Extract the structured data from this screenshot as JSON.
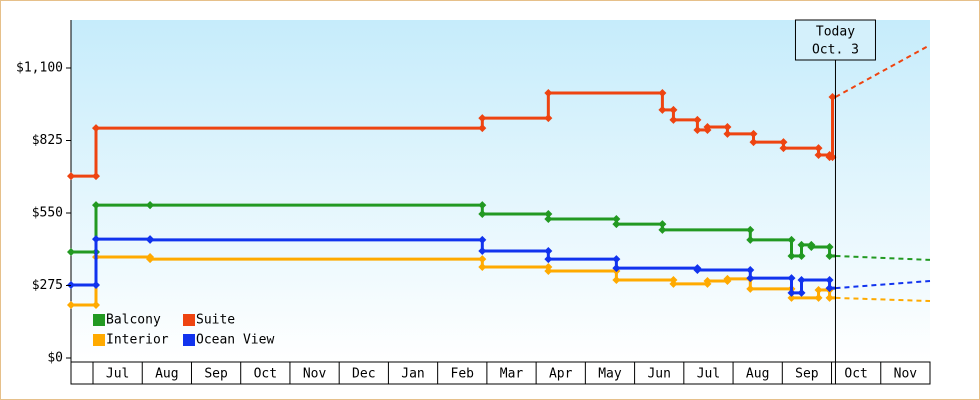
{
  "chart_data": {
    "type": "step-line",
    "xlim": [
      -0.447,
      17
    ],
    "xticks": [
      {
        "value": 0.5,
        "label": "Jul"
      },
      {
        "value": 1.5,
        "label": "Aug"
      },
      {
        "value": 2.5,
        "label": "Sep"
      },
      {
        "value": 3.5,
        "label": "Oct"
      },
      {
        "value": 4.5,
        "label": "Nov"
      },
      {
        "value": 5.5,
        "label": "Dec"
      },
      {
        "value": 6.5,
        "label": "Jan"
      },
      {
        "value": 7.5,
        "label": "Feb"
      },
      {
        "value": 8.5,
        "label": "Mar"
      },
      {
        "value": 9.5,
        "label": "Apr"
      },
      {
        "value": 10.5,
        "label": "May"
      },
      {
        "value": 11.5,
        "label": "Jun"
      },
      {
        "value": 12.5,
        "label": "Jul"
      },
      {
        "value": 13.5,
        "label": "Aug"
      },
      {
        "value": 14.5,
        "label": "Sep"
      },
      {
        "value": 15.5,
        "label": "Oct"
      },
      {
        "value": 16.5,
        "label": "Nov"
      }
    ],
    "ylim": [
      0,
      1282
    ],
    "yticks": [
      {
        "value": 0,
        "label": "$0"
      },
      {
        "value": 275,
        "label": "$275"
      },
      {
        "value": 550,
        "label": "$550"
      },
      {
        "value": 825,
        "label": "$825"
      },
      {
        "value": 1100,
        "label": "$1,100"
      }
    ],
    "legend": "lower left",
    "annotation": {
      "x": 15.08,
      "label": [
        "Today",
        "Oct. 3"
      ]
    },
    "series": [
      {
        "name": "Balcony",
        "color": "#229922",
        "x": [
          -0.447,
          0.061,
          1.159,
          7.907,
          9.248,
          10.63,
          11.565,
          13.35,
          14.187,
          14.39,
          14.59,
          14.96
        ],
        "values": [
          402,
          580,
          580,
          546,
          527,
          508,
          486,
          448,
          387,
          429,
          421,
          387
        ],
        "forecast": {
          "x": [
            15.08,
            17
          ],
          "values": [
            387,
            372
          ]
        }
      },
      {
        "name": "Suite",
        "color": "#ee4411",
        "x": [
          -0.447,
          0.061,
          7.907,
          9.248,
          11.565,
          11.789,
          12.276,
          12.48,
          12.886,
          13.415,
          14.024,
          14.736,
          14.96,
          15.02
        ],
        "values": [
          690,
          872,
          910,
          1005,
          941,
          903,
          865,
          876,
          850,
          819,
          796,
          770,
          762,
          990
        ],
        "forecast": {
          "x": [
            15.08,
            17
          ],
          "values": [
            990,
            1187
          ]
        }
      },
      {
        "name": "Interior",
        "color": "#ffaa00",
        "x": [
          -0.447,
          0.061,
          1.159,
          7.907,
          9.248,
          10.63,
          11.789,
          12.48,
          12.886,
          13.35,
          14.187,
          14.736,
          14.96
        ],
        "values": [
          201,
          383,
          375,
          345,
          330,
          296,
          281,
          292,
          300,
          262,
          228,
          258,
          228
        ],
        "forecast": {
          "x": [
            15.08,
            17
          ],
          "values": [
            228,
            216
          ]
        }
      },
      {
        "name": "Ocean View",
        "color": "#1133ee",
        "x": [
          -0.447,
          0.061,
          1.159,
          7.907,
          9.248,
          10.63,
          12.276,
          13.35,
          14.187,
          14.39,
          14.96
        ],
        "values": [
          277,
          451,
          448,
          406,
          375,
          341,
          334,
          303,
          247,
          296,
          265
        ],
        "forecast": {
          "x": [
            15.08,
            17
          ],
          "values": [
            265,
            292
          ]
        }
      }
    ]
  }
}
